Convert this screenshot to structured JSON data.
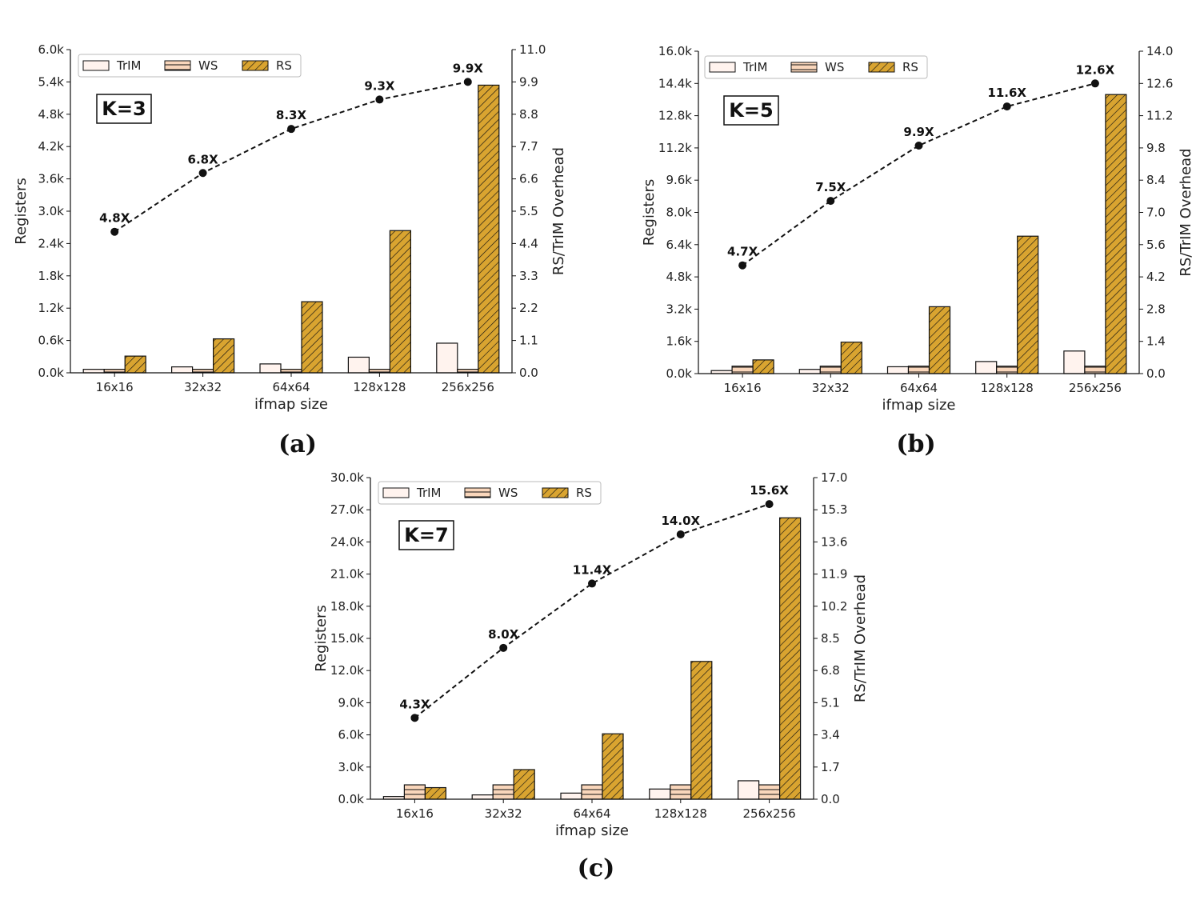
{
  "colors": {
    "trim": "#fff3ee",
    "ws": "#f9d6bb",
    "rs": "#d9a430",
    "edge": "#111111",
    "line": "#111111"
  },
  "chart_data": [
    {
      "type": "bar",
      "panel": "(a)",
      "badge": "K=3",
      "categories": [
        "16x16",
        "32x32",
        "64x64",
        "128x128",
        "256x256"
      ],
      "xlabel": "ifmap size",
      "ylabel": "Registers",
      "y2label": "RS/TrIM Overhead",
      "ylim": [
        0,
        6000
      ],
      "y2lim": [
        0,
        11.0
      ],
      "yticks": [
        "0.0k",
        "0.6k",
        "1.2k",
        "1.8k",
        "2.4k",
        "3.0k",
        "3.6k",
        "4.2k",
        "4.8k",
        "5.4k",
        "6.0k"
      ],
      "y2ticks": [
        "0.0",
        "1.1",
        "2.2",
        "3.3",
        "4.4",
        "5.5",
        "6.6",
        "7.7",
        "8.8",
        "9.9",
        "11.0"
      ],
      "legend": {
        "position": "top-left",
        "entries": [
          "TrIM",
          "WS",
          "RS"
        ]
      },
      "series": [
        {
          "name": "TrIM",
          "values": [
            65,
            110,
            165,
            290,
            550
          ]
        },
        {
          "name": "WS",
          "values": [
            65,
            65,
            65,
            65,
            65
          ]
        },
        {
          "name": "RS",
          "values": [
            310,
            630,
            1320,
            2640,
            5340
          ]
        }
      ],
      "overhead": {
        "values": [
          4.8,
          6.8,
          8.3,
          9.3,
          9.9
        ],
        "labels": [
          "4.8X",
          "6.8X",
          "8.3X",
          "9.3X",
          "9.9X"
        ]
      }
    },
    {
      "type": "bar",
      "panel": "(b)",
      "badge": "K=5",
      "categories": [
        "16x16",
        "32x32",
        "64x64",
        "128x128",
        "256x256"
      ],
      "xlabel": "ifmap size",
      "ylabel": "Registers",
      "y2label": "RS/TrIM Overhead",
      "ylim": [
        0,
        16000
      ],
      "y2lim": [
        0,
        14.0
      ],
      "yticks": [
        "0.0k",
        "1.6k",
        "3.2k",
        "4.8k",
        "6.4k",
        "8.0k",
        "9.6k",
        "11.2k",
        "12.8k",
        "14.4k",
        "16.0k"
      ],
      "y2ticks": [
        "0.0",
        "1.4",
        "2.8",
        "4.2",
        "5.6",
        "7.0",
        "8.4",
        "9.8",
        "11.2",
        "12.6",
        "14.0"
      ],
      "legend": {
        "position": "top-left",
        "entries": [
          "TrIM",
          "WS",
          "RS"
        ]
      },
      "series": [
        {
          "name": "TrIM",
          "values": [
            150,
            210,
            340,
            600,
            1120
          ]
        },
        {
          "name": "WS",
          "values": [
            370,
            370,
            370,
            370,
            370
          ]
        },
        {
          "name": "RS",
          "values": [
            680,
            1560,
            3320,
            6820,
            13850
          ]
        }
      ],
      "overhead": {
        "values": [
          4.7,
          7.5,
          9.9,
          11.6,
          12.6
        ],
        "labels": [
          "4.7X",
          "7.5X",
          "9.9X",
          "11.6X",
          "12.6X"
        ]
      }
    },
    {
      "type": "bar",
      "panel": "(c)",
      "badge": "K=7",
      "categories": [
        "16x16",
        "32x32",
        "64x64",
        "128x128",
        "256x256"
      ],
      "xlabel": "ifmap size",
      "ylabel": "Registers",
      "y2label": "RS/TrIM Overhead",
      "ylim": [
        0,
        30000
      ],
      "y2lim": [
        0,
        17.0
      ],
      "yticks": [
        "0.0k",
        "3.0k",
        "6.0k",
        "9.0k",
        "12.0k",
        "15.0k",
        "18.0k",
        "21.0k",
        "24.0k",
        "27.0k",
        "30.0k"
      ],
      "y2ticks": [
        "0.0",
        "1.7",
        "3.4",
        "5.1",
        "6.8",
        "8.5",
        "10.2",
        "11.9",
        "13.6",
        "15.3",
        "17.0"
      ],
      "legend": {
        "position": "top-left",
        "entries": [
          "TrIM",
          "WS",
          "RS"
        ]
      },
      "series": [
        {
          "name": "TrIM",
          "values": [
            250,
            400,
            570,
            950,
            1720
          ]
        },
        {
          "name": "WS",
          "values": [
            1340,
            1340,
            1340,
            1340,
            1340
          ]
        },
        {
          "name": "RS",
          "values": [
            1080,
            2760,
            6100,
            12850,
            26250
          ]
        }
      ],
      "overhead": {
        "values": [
          4.3,
          8.0,
          11.4,
          14.0,
          15.6
        ],
        "labels": [
          "4.3X",
          "8.0X",
          "11.4X",
          "14.0X",
          "15.6X"
        ]
      }
    }
  ]
}
